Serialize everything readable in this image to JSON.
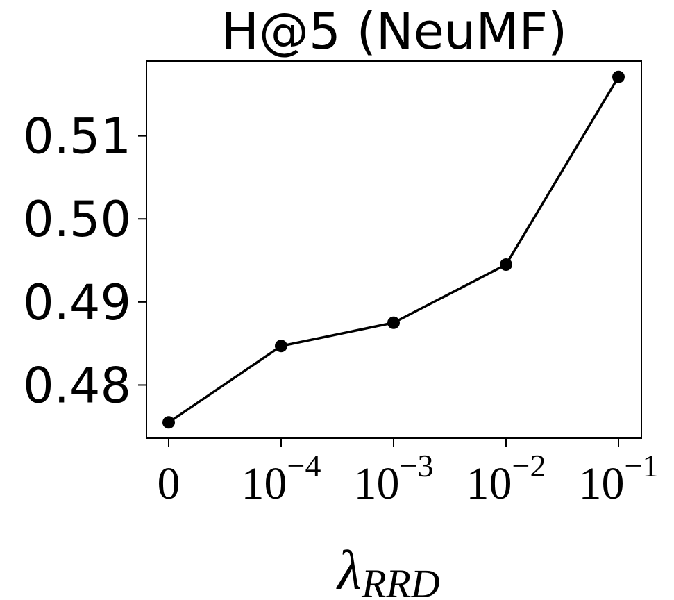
{
  "chart_data": {
    "type": "line",
    "title": "H@5 (NeuMF)",
    "xlabel": "λ",
    "xlabel_subscript": "RRD",
    "ylabel": "",
    "categories": [
      {
        "base": "0",
        "exp": ""
      },
      {
        "base": "10",
        "exp": "−4"
      },
      {
        "base": "10",
        "exp": "−3"
      },
      {
        "base": "10",
        "exp": "−2"
      },
      {
        "base": "10",
        "exp": "−1"
      }
    ],
    "series": [
      {
        "values": [
          0.4755,
          0.4847,
          0.4875,
          0.4945,
          0.5171
        ]
      }
    ],
    "yticks": [
      0.48,
      0.49,
      0.5,
      0.51
    ],
    "ytick_labels": [
      "0.48",
      "0.49",
      "0.50",
      "0.51"
    ],
    "ylim": [
      0.4736,
      0.519
    ],
    "grid": false,
    "legend": "none",
    "line_color": "#000000",
    "marker_color": "#000000"
  }
}
